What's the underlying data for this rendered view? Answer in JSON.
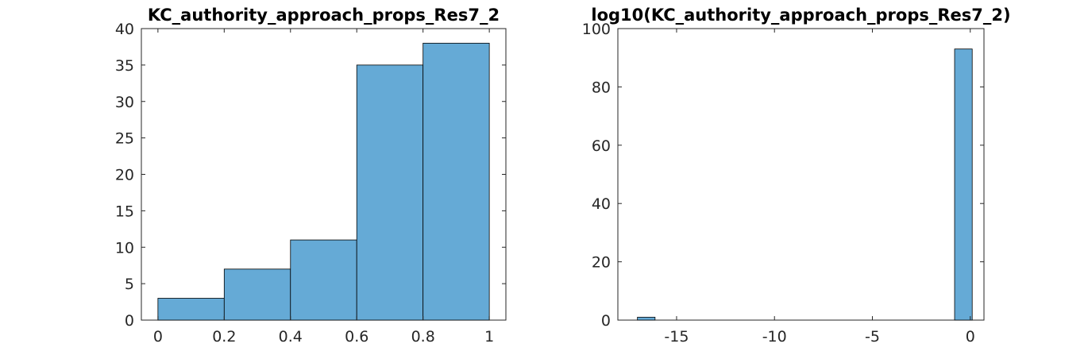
{
  "chart_data": [
    {
      "type": "bar",
      "title": "KC_authority_approach_props_Res7_2",
      "xlabel": "",
      "ylabel": "",
      "bin_edges": [
        0,
        0.2,
        0.4,
        0.6,
        0.8,
        1.0
      ],
      "values": [
        3,
        7,
        11,
        35,
        38
      ],
      "xlim": [
        -0.05,
        1.05
      ],
      "ylim": [
        0,
        40
      ],
      "xticks": [
        0,
        0.2,
        0.4,
        0.6,
        0.8,
        1
      ],
      "xtick_labels": [
        "0",
        "0.2",
        "0.4",
        "0.6",
        "0.8",
        "1"
      ],
      "yticks": [
        0,
        5,
        10,
        15,
        20,
        25,
        30,
        35,
        40
      ],
      "ytick_labels": [
        "0",
        "5",
        "10",
        "15",
        "20",
        "25",
        "30",
        "35",
        "40"
      ],
      "bar_color": "#65aad6",
      "edge_color": "#000000",
      "grid": false
    },
    {
      "type": "bar",
      "title": "log10(KC_authority_approach_props_Res7_2)",
      "xlabel": "",
      "ylabel": "",
      "bin_edges": [
        -17,
        -16.1,
        -15.2,
        -14.3,
        -13.4,
        -12.5,
        -11.6,
        -10.7,
        -9.8,
        -8.9,
        -8,
        -7.1,
        -6.2,
        -5.3,
        -4.4,
        -3.5,
        -2.6,
        -1.7,
        -0.8,
        0.1
      ],
      "values": [
        1,
        0,
        0,
        0,
        0,
        0,
        0,
        0,
        0,
        0,
        0,
        0,
        0,
        0,
        0,
        0,
        0,
        0,
        93
      ],
      "xlim": [
        -18,
        0.7
      ],
      "ylim": [
        0,
        100
      ],
      "xticks": [
        -15,
        -10,
        -5,
        0
      ],
      "xtick_labels": [
        "-15",
        "-10",
        "-5",
        "0"
      ],
      "yticks": [
        0,
        20,
        40,
        60,
        80,
        100
      ],
      "ytick_labels": [
        "0",
        "20",
        "40",
        "60",
        "80",
        "100"
      ],
      "bar_color": "#65aad6",
      "edge_color": "#000000",
      "grid": false
    }
  ]
}
